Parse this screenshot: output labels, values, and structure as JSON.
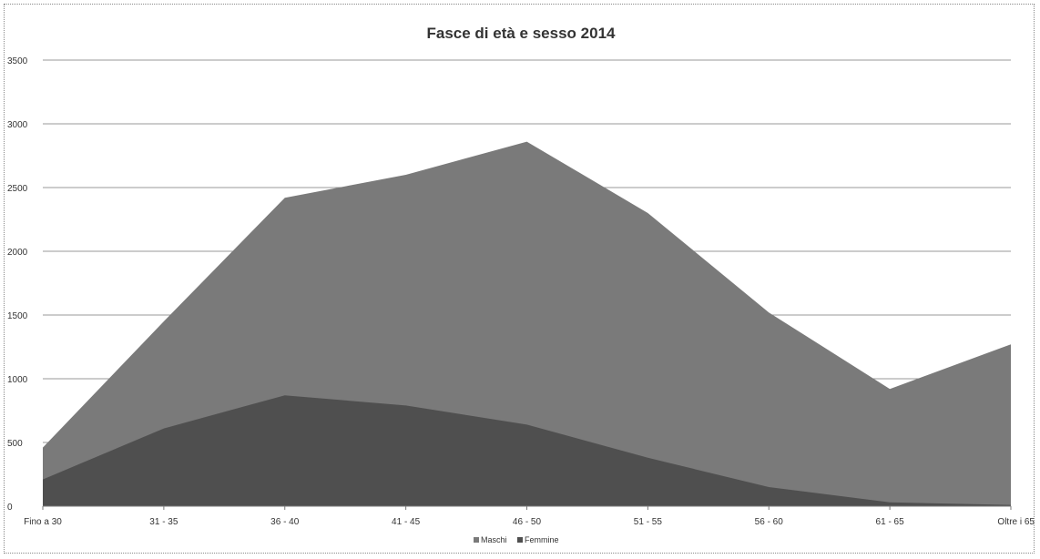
{
  "chart_data": {
    "type": "area",
    "title": "Fasce di età e sesso 2014",
    "xlabel": "",
    "ylabel": "",
    "categories": [
      "Fino a 30",
      "31 - 35",
      "36 - 40",
      "41 - 45",
      "46 - 50",
      "51 - 55",
      "56 - 60",
      "61 - 65",
      "Oltre i 65"
    ],
    "ylim": [
      0,
      3500
    ],
    "yticks": [
      0,
      500,
      1000,
      1500,
      2000,
      2500,
      3000,
      3500
    ],
    "stacked": false,
    "series": [
      {
        "name": "Maschi",
        "color": "#7a7a7a",
        "values": [
          460,
          1450,
          2420,
          2600,
          2860,
          2300,
          1520,
          920,
          1270
        ]
      },
      {
        "name": "Femmine",
        "color": "#4f4f4f",
        "values": [
          210,
          610,
          870,
          790,
          640,
          380,
          150,
          30,
          10
        ]
      }
    ],
    "grid": true,
    "legend_position": "bottom"
  }
}
